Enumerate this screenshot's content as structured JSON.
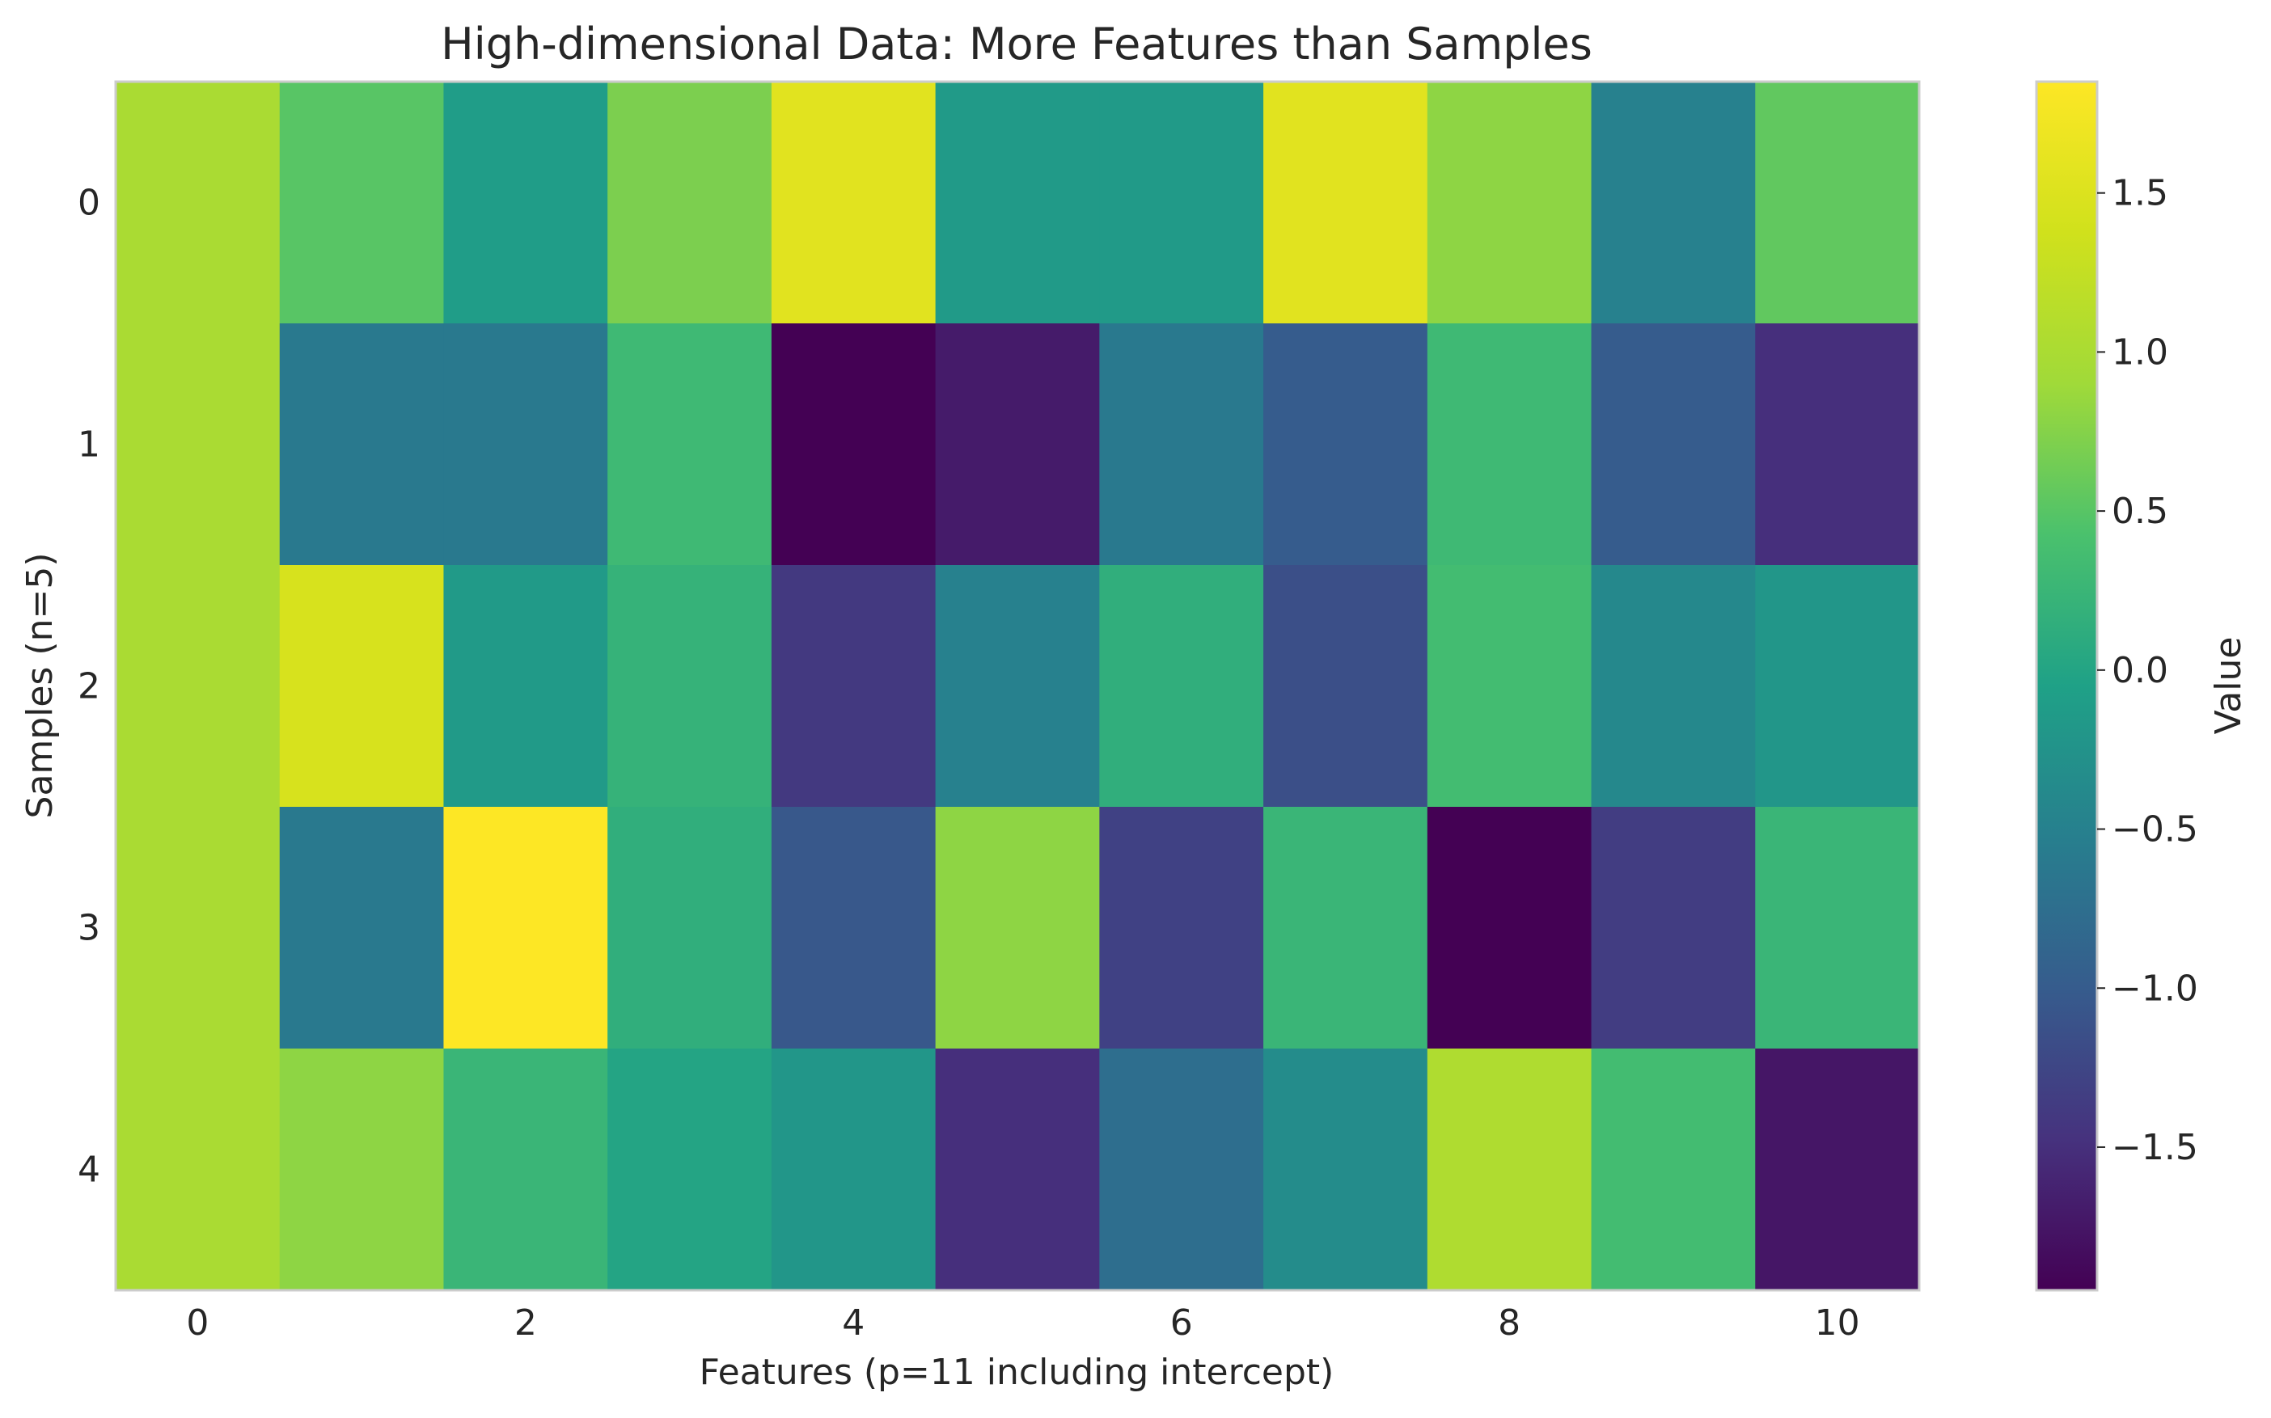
{
  "chart_data": {
    "type": "heatmap",
    "title": "High-dimensional Data: More Features than Samples",
    "xlabel": "Features (p=11 including intercept)",
    "ylabel": "Samples (n=5)",
    "x_ticks": [
      "0",
      "2",
      "4",
      "6",
      "8",
      "10"
    ],
    "x_tick_values": [
      0,
      2,
      4,
      6,
      8,
      10
    ],
    "y_ticks": [
      "0",
      "1",
      "2",
      "3",
      "4"
    ],
    "y_tick_values": [
      0,
      1,
      2,
      3,
      4
    ],
    "n_rows": 5,
    "n_cols": 11,
    "colormap": "viridis",
    "vmin": -1.95,
    "vmax": 1.85,
    "values": [
      [
        1.0,
        0.5,
        -0.1,
        0.7,
        1.55,
        -0.15,
        -0.15,
        1.55,
        0.8,
        -0.5,
        0.55
      ],
      [
        1.0,
        -0.6,
        -0.6,
        0.3,
        -1.95,
        -1.7,
        -0.6,
        -1.0,
        0.3,
        -1.0,
        -1.5
      ],
      [
        1.0,
        1.45,
        -0.15,
        0.2,
        -1.4,
        -0.5,
        0.15,
        -1.15,
        0.35,
        -0.4,
        -0.2
      ],
      [
        1.0,
        -0.6,
        1.85,
        0.15,
        -1.05,
        0.8,
        -1.3,
        0.25,
        -1.95,
        -1.35,
        0.25
      ],
      [
        1.0,
        0.8,
        0.25,
        0.0,
        -0.2,
        -1.5,
        -0.75,
        -0.35,
        1.05,
        0.35,
        -1.75
      ]
    ],
    "colorbar": {
      "label": "Value",
      "ticks": [
        "−1.5",
        "−1.0",
        "−0.5",
        "0.0",
        "0.5",
        "1.0",
        "1.5"
      ],
      "tick_values": [
        -1.5,
        -1.0,
        -0.5,
        0.0,
        0.5,
        1.0,
        1.5
      ]
    },
    "grid": false
  }
}
